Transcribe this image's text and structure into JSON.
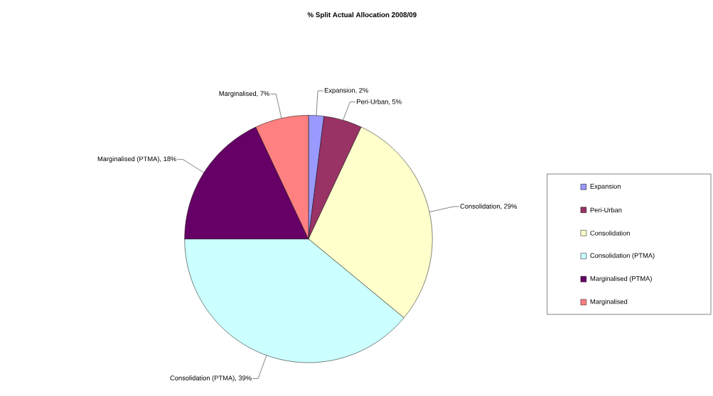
{
  "chart_data": {
    "type": "pie",
    "title": "% Split Actual Allocation 2008/09",
    "categories": [
      "Expansion",
      "Peri-Urban",
      "Consolidation",
      "Consolidation (PTMA)",
      "Marginalised (PTMA)",
      "Marginalised"
    ],
    "values": [
      2,
      5,
      29,
      39,
      18,
      7
    ],
    "colors": [
      "#9999ff",
      "#993366",
      "#ffffcc",
      "#ccffff",
      "#660066",
      "#ff8080"
    ],
    "value_labels": [
      "Expansion, 2%",
      "Peri-Urban, 5%",
      "Consolidation, 29%",
      "Consolidation (PTMA), 39%",
      "Marginalised (PTMA), 18%",
      "Marginalised,  7%"
    ],
    "legend": "right"
  }
}
